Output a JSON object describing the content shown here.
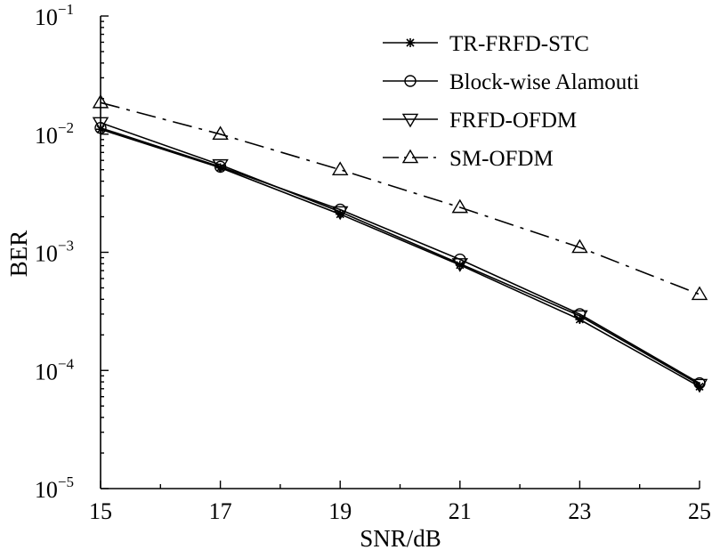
{
  "chart_data": {
    "type": "line",
    "title": "",
    "xlabel": "SNR/dB",
    "ylabel": "BER",
    "xlim": [
      15,
      25
    ],
    "ylim": [
      1e-05,
      0.1
    ],
    "yscale": "log",
    "grid": false,
    "legend_position": "top-right",
    "x_ticks": [
      "15",
      "17",
      "19",
      "21",
      "23",
      "25"
    ],
    "y_ticks": [
      {
        "value": 0.1,
        "base": "10",
        "exp": "−1"
      },
      {
        "value": 0.01,
        "base": "10",
        "exp": "−2"
      },
      {
        "value": 0.001,
        "base": "10",
        "exp": "−3"
      },
      {
        "value": 0.0001,
        "base": "10",
        "exp": "−4"
      },
      {
        "value": 1e-05,
        "base": "10",
        "exp": "−5"
      }
    ],
    "x": [
      15,
      17,
      19,
      21,
      23,
      25
    ],
    "series": [
      {
        "name": "TR-FRFD-STC",
        "marker": "star",
        "dash": "solid",
        "values": [
          0.011,
          0.0052,
          0.0021,
          0.00078,
          0.00027,
          7.3e-05
        ]
      },
      {
        "name": "Block-wise Alamouti",
        "marker": "circle",
        "dash": "solid",
        "values": [
          0.0113,
          0.0053,
          0.0023,
          0.00087,
          0.0003,
          7.8e-05
        ]
      },
      {
        "name": "FRFD-OFDM",
        "marker": "triangle-down",
        "dash": "solid",
        "values": [
          0.0125,
          0.0055,
          0.0022,
          0.0008,
          0.00029,
          7.6e-05
        ]
      },
      {
        "name": "SM-OFDM",
        "marker": "triangle-up",
        "dash": "dashdot",
        "values": [
          0.0185,
          0.01,
          0.005,
          0.0024,
          0.0011,
          0.00044
        ]
      }
    ]
  }
}
